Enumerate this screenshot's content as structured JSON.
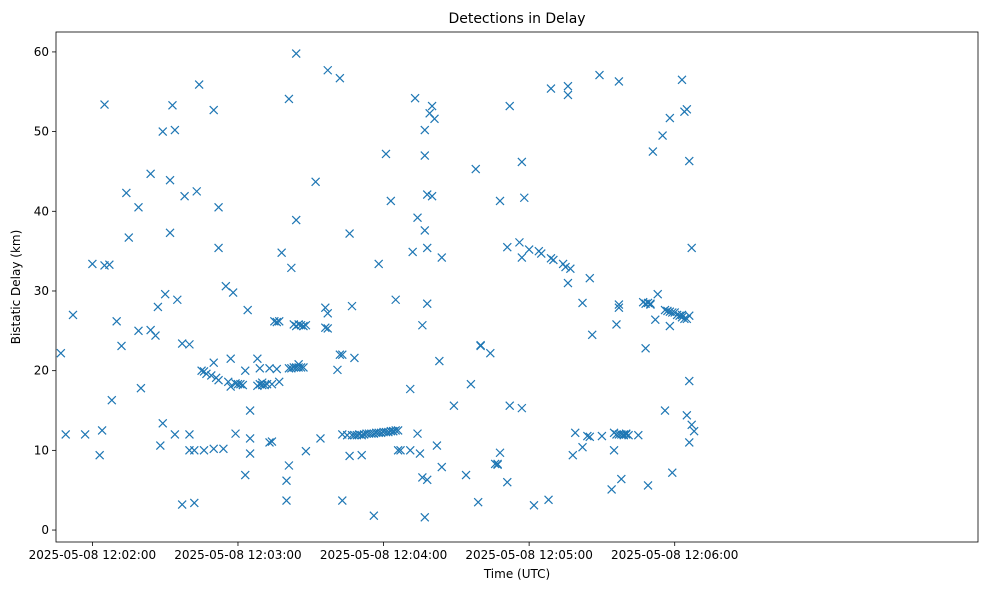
{
  "chart_data": {
    "type": "scatter",
    "title": "Detections in Delay",
    "xlabel": "Time (UTC)",
    "ylabel": "Bistatic Delay (km)",
    "x_unit": "time",
    "x_ticks": [
      "2025-05-08 12:02:00",
      "2025-05-08 12:03:00",
      "2025-05-08 12:04:00",
      "2025-05-08 12:05:00",
      "2025-05-08 12:06:00"
    ],
    "y_ticks": [
      "0",
      "10",
      "20",
      "30",
      "40",
      "50",
      "60"
    ],
    "xlim": [
      "2025-05-08 12:01:45",
      "2025-05-08 12:08:05"
    ],
    "ylim": [
      -1.5,
      62.5
    ],
    "marker": "x",
    "color": "#1f77b4",
    "grid": false,
    "points": [
      [
        "12:01:47",
        22.2
      ],
      [
        "12:01:49",
        12.0
      ],
      [
        "12:01:52",
        27.0
      ],
      [
        "12:01:57",
        12.0
      ],
      [
        "12:02:00",
        33.4
      ],
      [
        "12:02:03",
        9.4
      ],
      [
        "12:02:04",
        12.5
      ],
      [
        "12:02:05",
        53.4
      ],
      [
        "12:02:05",
        33.2
      ],
      [
        "12:02:07",
        33.3
      ],
      [
        "12:02:08",
        16.3
      ],
      [
        "12:02:10",
        26.2
      ],
      [
        "12:02:12",
        23.1
      ],
      [
        "12:02:14",
        42.3
      ],
      [
        "12:02:15",
        36.7
      ],
      [
        "12:02:19",
        40.5
      ],
      [
        "12:02:19",
        25.0
      ],
      [
        "12:02:20",
        17.8
      ],
      [
        "12:02:24",
        44.7
      ],
      [
        "12:02:24",
        25.1
      ],
      [
        "12:02:26",
        24.4
      ],
      [
        "12:02:27",
        28.0
      ],
      [
        "12:02:28",
        10.6
      ],
      [
        "12:02:29",
        13.4
      ],
      [
        "12:02:29",
        50.0
      ],
      [
        "12:02:30",
        29.6
      ],
      [
        "12:02:32",
        43.9
      ],
      [
        "12:02:32",
        37.3
      ],
      [
        "12:02:33",
        53.3
      ],
      [
        "12:02:34",
        12.0
      ],
      [
        "12:02:34",
        50.2
      ],
      [
        "12:02:35",
        28.9
      ],
      [
        "12:02:37",
        3.2
      ],
      [
        "12:02:37",
        23.4
      ],
      [
        "12:02:38",
        41.9
      ],
      [
        "12:02:40",
        23.3
      ],
      [
        "12:02:40",
        12.0
      ],
      [
        "12:02:40",
        10.0
      ],
      [
        "12:02:42",
        3.4
      ],
      [
        "12:02:42",
        10.0
      ],
      [
        "12:02:43",
        42.5
      ],
      [
        "12:02:44",
        55.9
      ],
      [
        "12:02:45",
        20.0
      ],
      [
        "12:02:46",
        10.0
      ],
      [
        "12:02:46",
        19.9
      ],
      [
        "12:02:47",
        19.6
      ],
      [
        "12:02:49",
        19.4
      ],
      [
        "12:02:50",
        10.2
      ],
      [
        "12:02:50",
        21.0
      ],
      [
        "12:02:50",
        52.7
      ],
      [
        "12:02:51",
        19.1
      ],
      [
        "12:02:52",
        40.5
      ],
      [
        "12:02:52",
        18.8
      ],
      [
        "12:02:52",
        35.4
      ],
      [
        "12:02:54",
        10.2
      ],
      [
        "12:02:55",
        30.6
      ],
      [
        "12:02:56",
        18.6
      ],
      [
        "12:02:57",
        21.5
      ],
      [
        "12:02:57",
        18.0
      ],
      [
        "12:02:58",
        29.8
      ],
      [
        "12:02:59",
        18.4
      ],
      [
        "12:02:59",
        12.1
      ],
      [
        "12:03:00",
        18.3
      ],
      [
        "12:03:01",
        18.3
      ],
      [
        "12:03:02",
        18.2
      ],
      [
        "12:03:03",
        20.0
      ],
      [
        "12:03:03",
        6.9
      ],
      [
        "12:03:04",
        27.6
      ],
      [
        "12:03:05",
        15.0
      ],
      [
        "12:03:05",
        11.5
      ],
      [
        "12:03:05",
        9.6
      ],
      [
        "12:03:08",
        21.5
      ],
      [
        "12:03:08",
        18.1
      ],
      [
        "12:03:09",
        18.3
      ],
      [
        "12:03:09",
        20.3
      ],
      [
        "12:03:10",
        18.5
      ],
      [
        "12:03:10",
        18.2
      ],
      [
        "12:03:11",
        18.2
      ],
      [
        "12:03:12",
        18.3
      ],
      [
        "12:03:13",
        20.3
      ],
      [
        "12:03:13",
        11.0
      ],
      [
        "12:03:14",
        11.1
      ],
      [
        "12:03:14",
        18.3
      ],
      [
        "12:03:15",
        26.2
      ],
      [
        "12:03:16",
        26.1
      ],
      [
        "12:03:16",
        20.2
      ],
      [
        "12:03:17",
        26.2
      ],
      [
        "12:03:17",
        18.6
      ],
      [
        "12:03:18",
        34.8
      ],
      [
        "12:03:20",
        6.2
      ],
      [
        "12:03:20",
        3.7
      ],
      [
        "12:03:21",
        8.1
      ],
      [
        "12:03:21",
        54.1
      ],
      [
        "12:03:21",
        20.3
      ],
      [
        "12:03:22",
        20.3
      ],
      [
        "12:03:22",
        32.9
      ],
      [
        "12:03:23",
        25.8
      ],
      [
        "12:03:23",
        20.4
      ],
      [
        "12:03:24",
        25.6
      ],
      [
        "12:03:24",
        20.4
      ],
      [
        "12:03:24",
        59.8
      ],
      [
        "12:03:24",
        38.9
      ],
      [
        "12:03:25",
        20.4
      ],
      [
        "12:03:25",
        25.8
      ],
      [
        "12:03:25",
        20.8
      ],
      [
        "12:03:26",
        25.7
      ],
      [
        "12:03:26",
        20.4
      ],
      [
        "12:03:27",
        25.6
      ],
      [
        "12:03:27",
        20.4
      ],
      [
        "12:03:28",
        25.7
      ],
      [
        "12:03:28",
        9.9
      ],
      [
        "12:03:32",
        43.7
      ],
      [
        "12:03:34",
        11.5
      ],
      [
        "12:03:36",
        27.9
      ],
      [
        "12:03:37",
        57.7
      ],
      [
        "12:03:36",
        25.4
      ],
      [
        "12:03:37",
        27.2
      ],
      [
        "12:03:37",
        25.3
      ],
      [
        "12:03:41",
        20.1
      ],
      [
        "12:03:42",
        56.7
      ],
      [
        "12:03:42",
        22.0
      ],
      [
        "12:03:43",
        22.0
      ],
      [
        "12:03:43",
        12.0
      ],
      [
        "12:03:43",
        3.7
      ],
      [
        "12:03:45",
        11.9
      ],
      [
        "12:03:46",
        37.2
      ],
      [
        "12:03:46",
        9.3
      ],
      [
        "12:03:47",
        28.1
      ],
      [
        "12:03:47",
        11.9
      ],
      [
        "12:03:48",
        21.6
      ],
      [
        "12:03:48",
        11.9
      ],
      [
        "12:03:49",
        11.9
      ],
      [
        "12:03:50",
        12.0
      ],
      [
        "12:03:51",
        11.9
      ],
      [
        "12:03:51",
        9.4
      ],
      [
        "12:03:52",
        12.0
      ],
      [
        "12:03:53",
        12.1
      ],
      [
        "12:03:54",
        12.1
      ],
      [
        "12:03:55",
        12.1
      ],
      [
        "12:03:56",
        12.1
      ],
      [
        "12:03:56",
        1.8
      ],
      [
        "12:03:57",
        12.2
      ],
      [
        "12:03:58",
        12.2
      ],
      [
        "12:03:58",
        33.4
      ],
      [
        "12:03:59",
        12.2
      ],
      [
        "12:04:00",
        12.3
      ],
      [
        "12:04:01",
        12.3
      ],
      [
        "12:04:01",
        47.2
      ],
      [
        "12:04:02",
        12.3
      ],
      [
        "12:04:03",
        12.4
      ],
      [
        "12:04:03",
        41.3
      ],
      [
        "12:04:04",
        12.4
      ],
      [
        "12:04:04",
        12.4
      ],
      [
        "12:04:05",
        12.5
      ],
      [
        "12:04:05",
        28.9
      ],
      [
        "12:04:06",
        12.5
      ],
      [
        "12:04:06",
        10.0
      ],
      [
        "12:04:07",
        10.0
      ],
      [
        "12:04:11",
        10.0
      ],
      [
        "12:04:11",
        17.7
      ],
      [
        "12:04:12",
        34.9
      ],
      [
        "12:04:13",
        54.2
      ],
      [
        "12:04:14",
        12.1
      ],
      [
        "12:04:14",
        39.2
      ],
      [
        "12:04:15",
        9.6
      ],
      [
        "12:04:16",
        6.6
      ],
      [
        "12:04:16",
        25.7
      ],
      [
        "12:04:17",
        50.2
      ],
      [
        "12:04:17",
        47.0
      ],
      [
        "12:04:17",
        37.6
      ],
      [
        "12:04:17",
        1.6
      ],
      [
        "12:04:18",
        6.3
      ],
      [
        "12:04:18",
        42.1
      ],
      [
        "12:04:18",
        35.4
      ],
      [
        "12:04:18",
        28.4
      ],
      [
        "12:04:19",
        52.3
      ],
      [
        "12:04:20",
        53.2
      ],
      [
        "12:04:20",
        41.9
      ],
      [
        "12:04:21",
        51.6
      ],
      [
        "12:04:22",
        10.6
      ],
      [
        "12:04:23",
        21.2
      ],
      [
        "12:04:24",
        7.9
      ],
      [
        "12:04:24",
        34.2
      ],
      [
        "12:04:29",
        15.6
      ],
      [
        "12:04:34",
        6.9
      ],
      [
        "12:04:36",
        18.3
      ],
      [
        "12:04:38",
        45.3
      ],
      [
        "12:04:39",
        3.5
      ],
      [
        "12:04:40",
        23.2
      ],
      [
        "12:04:40",
        23.1
      ],
      [
        "12:04:44",
        22.2
      ],
      [
        "12:04:46",
        8.3
      ],
      [
        "12:04:47",
        8.3
      ],
      [
        "12:04:47",
        8.2
      ],
      [
        "12:04:48",
        9.7
      ],
      [
        "12:04:48",
        41.3
      ],
      [
        "12:04:52",
        53.2
      ],
      [
        "12:04:51",
        35.5
      ],
      [
        "12:04:51",
        6.0
      ],
      [
        "12:04:52",
        15.6
      ],
      [
        "12:04:56",
        36.1
      ],
      [
        "12:04:57",
        34.2
      ],
      [
        "12:04:57",
        46.2
      ],
      [
        "12:04:58",
        41.7
      ],
      [
        "12:04:57",
        15.3
      ],
      [
        "12:05:00",
        35.2
      ],
      [
        "12:05:02",
        3.1
      ],
      [
        "12:05:04",
        35.0
      ],
      [
        "12:05:05",
        34.7
      ],
      [
        "12:05:08",
        3.8
      ],
      [
        "12:05:09",
        34.1
      ],
      [
        "12:05:09",
        55.4
      ],
      [
        "12:05:10",
        33.9
      ],
      [
        "12:05:14",
        33.4
      ],
      [
        "12:05:15",
        33.0
      ],
      [
        "12:05:16",
        31.0
      ],
      [
        "12:05:16",
        54.6
      ],
      [
        "12:05:16",
        55.7
      ],
      [
        "12:05:17",
        32.8
      ],
      [
        "12:05:18",
        9.4
      ],
      [
        "12:05:19",
        12.2
      ],
      [
        "12:05:22",
        10.4
      ],
      [
        "12:05:22",
        28.5
      ],
      [
        "12:05:24",
        11.8
      ],
      [
        "12:05:25",
        11.7
      ],
      [
        "12:05:25",
        31.6
      ],
      [
        "12:05:26",
        24.5
      ],
      [
        "12:05:29",
        57.1
      ],
      [
        "12:05:30",
        11.8
      ],
      [
        "12:05:34",
        5.1
      ],
      [
        "12:05:35",
        12.2
      ],
      [
        "12:05:35",
        10.0
      ],
      [
        "12:05:36",
        12.0
      ],
      [
        "12:05:36",
        25.8
      ],
      [
        "12:05:37",
        56.3
      ],
      [
        "12:05:37",
        27.9
      ],
      [
        "12:05:37",
        12.0
      ],
      [
        "12:05:37",
        28.3
      ],
      [
        "12:05:38",
        12.0
      ],
      [
        "12:05:38",
        6.4
      ],
      [
        "12:05:39",
        11.9
      ],
      [
        "12:05:39",
        12.0
      ],
      [
        "12:05:40",
        12.1
      ],
      [
        "12:05:40",
        12.0
      ],
      [
        "12:05:41",
        11.9
      ],
      [
        "12:05:45",
        11.9
      ],
      [
        "12:05:47",
        28.6
      ],
      [
        "12:05:48",
        28.4
      ],
      [
        "12:05:48",
        22.8
      ],
      [
        "12:05:49",
        5.6
      ],
      [
        "12:05:49",
        28.5
      ],
      [
        "12:05:50",
        28.4
      ],
      [
        "12:05:50",
        28.3
      ],
      [
        "12:05:51",
        47.5
      ],
      [
        "12:05:52",
        26.4
      ],
      [
        "12:05:53",
        29.6
      ],
      [
        "12:05:55",
        49.5
      ],
      [
        "12:05:56",
        27.6
      ],
      [
        "12:05:56",
        15.0
      ],
      [
        "12:05:57",
        27.5
      ],
      [
        "12:05:58",
        25.6
      ],
      [
        "12:05:58",
        27.4
      ],
      [
        "12:05:58",
        51.7
      ],
      [
        "12:05:59",
        7.2
      ],
      [
        "12:05:59",
        27.3
      ],
      [
        "12:06:00",
        27.3
      ],
      [
        "12:06:01",
        27.0
      ],
      [
        "12:06:02",
        26.9
      ],
      [
        "12:06:03",
        27.0
      ],
      [
        "12:06:03",
        56.5
      ],
      [
        "12:06:03",
        26.7
      ],
      [
        "12:06:04",
        52.5
      ],
      [
        "12:06:04",
        26.5
      ],
      [
        "12:06:05",
        14.4
      ],
      [
        "12:06:05",
        52.8
      ],
      [
        "12:06:05",
        26.5
      ],
      [
        "12:06:06",
        26.9
      ],
      [
        "12:06:06",
        46.3
      ],
      [
        "12:06:06",
        18.7
      ],
      [
        "12:06:06",
        11.0
      ],
      [
        "12:06:07",
        13.2
      ],
      [
        "12:06:07",
        35.4
      ],
      [
        "12:06:08",
        12.4
      ]
    ]
  }
}
